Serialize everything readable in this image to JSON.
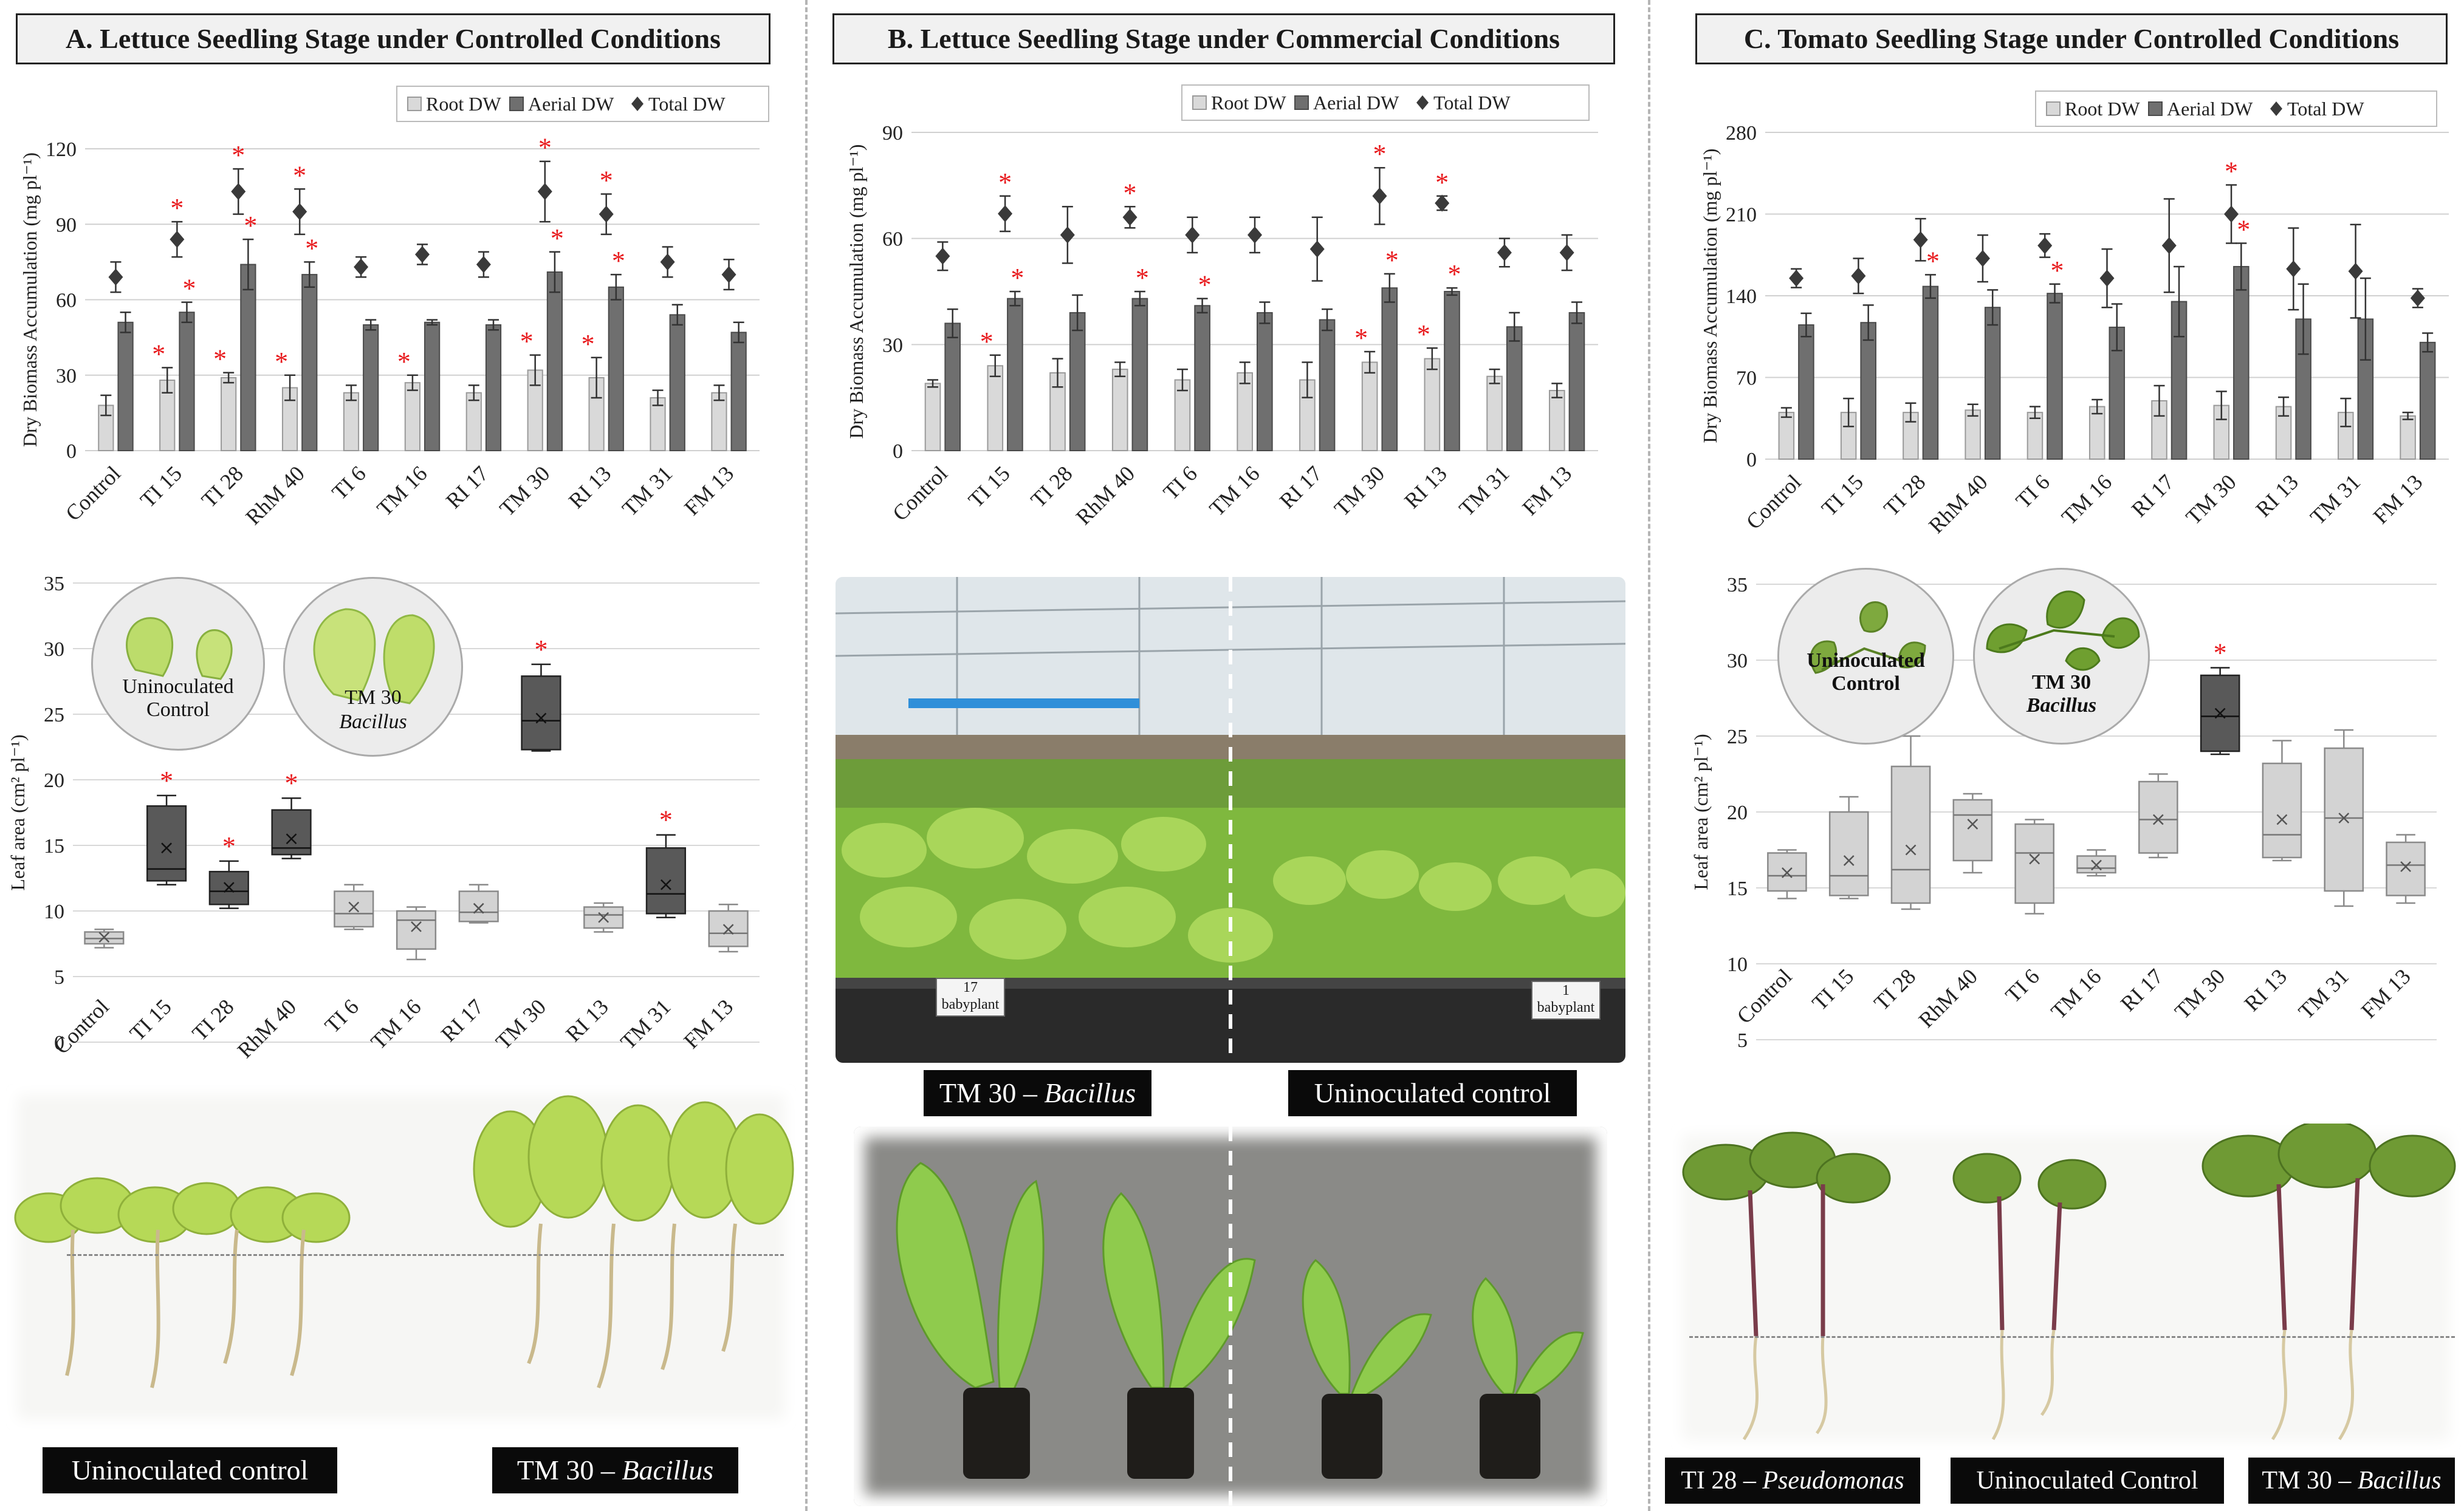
{
  "panels": {
    "A": {
      "title": "A. Lettuce Seedling Stage under Controlled Conditions"
    },
    "B": {
      "title": "B. Lettuce Seedling Stage under Commercial Conditions"
    },
    "C": {
      "title": "C. Tomato Seedling Stage under Controlled Conditions"
    }
  },
  "legend": {
    "root": "Root DW",
    "aerial": "Aerial DW",
    "total": "Total DW"
  },
  "colors": {
    "root": "#d9d9d9",
    "aerial": "#6f6f6f",
    "total": "#3a3a3a",
    "star": "#e8191c",
    "box_dark": "#595959",
    "box_light": "#d3d3d3"
  },
  "chart_data": [
    {
      "type": "bar",
      "panel": "A",
      "ylabel": "Dry Biomass Accumulation (mg pl⁻¹)",
      "ylim": [
        0,
        120
      ],
      "yticks": [
        0,
        30,
        60,
        90,
        120
      ],
      "categories": [
        "Control",
        "TI 15",
        "TI 28",
        "RhM 40",
        "TI 6",
        "TM 16",
        "RI 17",
        "TM 30",
        "RI 13",
        "TM 31",
        "FM 13"
      ],
      "series": [
        {
          "name": "Root DW",
          "values": [
            18,
            28,
            29,
            25,
            23,
            27,
            23,
            32,
            29,
            21,
            23
          ],
          "err": [
            4,
            5,
            2,
            5,
            3,
            3,
            3,
            6,
            8,
            3,
            3
          ],
          "sig": [
            false,
            true,
            true,
            true,
            false,
            true,
            false,
            true,
            true,
            false,
            false
          ]
        },
        {
          "name": "Aerial DW",
          "values": [
            51,
            55,
            74,
            70,
            50,
            51,
            50,
            71,
            65,
            54,
            47
          ],
          "err": [
            4,
            4,
            10,
            5,
            2,
            1,
            2,
            8,
            5,
            4,
            4
          ],
          "sig": [
            false,
            true,
            true,
            true,
            false,
            false,
            false,
            true,
            true,
            false,
            false
          ]
        },
        {
          "name": "Total DW",
          "values": [
            69,
            84,
            103,
            95,
            73,
            78,
            74,
            103,
            94,
            75,
            70
          ],
          "err": [
            6,
            7,
            9,
            9,
            4,
            4,
            5,
            12,
            8,
            6,
            6
          ],
          "sig": [
            false,
            true,
            true,
            true,
            false,
            false,
            false,
            true,
            true,
            false,
            false
          ]
        }
      ]
    },
    {
      "type": "bar",
      "panel": "B",
      "ylabel": "Dry Biomass Accumulation (mg pl⁻¹)",
      "ylim": [
        0,
        90
      ],
      "yticks": [
        0,
        30,
        60,
        90
      ],
      "categories": [
        "Control",
        "TI 15",
        "TI 28",
        "RhM 40",
        "TI 6",
        "TM 16",
        "RI 17",
        "TM 30",
        "RI 13",
        "TM 31",
        "FM 13"
      ],
      "series": [
        {
          "name": "Root DW",
          "values": [
            19,
            24,
            22,
            23,
            20,
            22,
            20,
            25,
            26,
            21,
            17
          ],
          "err": [
            1,
            3,
            4,
            2,
            3,
            3,
            5,
            3,
            3,
            2,
            2
          ],
          "sig": [
            false,
            true,
            false,
            false,
            false,
            false,
            false,
            true,
            true,
            false,
            false
          ]
        },
        {
          "name": "Aerial DW",
          "values": [
            36,
            43,
            39,
            43,
            41,
            39,
            37,
            46,
            45,
            35,
            39
          ],
          "err": [
            4,
            2,
            5,
            2,
            2,
            3,
            3,
            4,
            1,
            4,
            3
          ],
          "sig": [
            false,
            true,
            false,
            true,
            true,
            false,
            false,
            true,
            true,
            false,
            false
          ]
        },
        {
          "name": "Total DW",
          "values": [
            55,
            67,
            61,
            66,
            61,
            61,
            57,
            72,
            70,
            56,
            56
          ],
          "err": [
            4,
            5,
            8,
            3,
            5,
            5,
            9,
            8,
            2,
            4,
            5
          ],
          "sig": [
            false,
            true,
            false,
            true,
            false,
            false,
            false,
            true,
            true,
            false,
            false
          ]
        }
      ]
    },
    {
      "type": "bar",
      "panel": "C",
      "ylabel": "Dry Biomass Accumulation (mg pl⁻¹)",
      "ylim": [
        0,
        280
      ],
      "yticks": [
        0,
        70,
        140,
        210,
        280
      ],
      "categories": [
        "Control",
        "TI 15",
        "TI 28",
        "RhM 40",
        "TI 6",
        "TM 16",
        "RI 17",
        "TM 30",
        "RI 13",
        "TM 31",
        "FM 13"
      ],
      "series": [
        {
          "name": "Root DW",
          "values": [
            40,
            40,
            40,
            42,
            40,
            45,
            50,
            46,
            45,
            40,
            37
          ],
          "err": [
            4,
            12,
            8,
            5,
            5,
            6,
            13,
            12,
            8,
            12,
            3
          ],
          "sig": [
            false,
            false,
            false,
            false,
            false,
            false,
            false,
            false,
            false,
            false,
            false
          ]
        },
        {
          "name": "Aerial DW",
          "values": [
            115,
            117,
            148,
            130,
            142,
            113,
            135,
            165,
            120,
            120,
            100
          ],
          "err": [
            10,
            15,
            10,
            15,
            8,
            20,
            30,
            20,
            30,
            35,
            8
          ],
          "sig": [
            false,
            false,
            true,
            false,
            true,
            false,
            false,
            true,
            false,
            false,
            false
          ]
        },
        {
          "name": "Total DW",
          "values": [
            155,
            157,
            188,
            172,
            183,
            155,
            183,
            210,
            163,
            161,
            138
          ],
          "err": [
            8,
            15,
            18,
            20,
            10,
            25,
            40,
            25,
            35,
            40,
            8
          ],
          "sig": [
            false,
            false,
            false,
            false,
            false,
            false,
            false,
            true,
            false,
            false,
            false
          ]
        }
      ]
    },
    {
      "type": "box",
      "panel": "A",
      "ylabel": "Leaf area (cm² pl⁻¹)",
      "ylim": [
        0,
        35
      ],
      "yticks": [
        0,
        5,
        10,
        15,
        20,
        25,
        30,
        35
      ],
      "categories": [
        "Control",
        "TI 15",
        "TI 28",
        "RhM 40",
        "TI 6",
        "TM 16",
        "RI 17",
        "TM 30",
        "RI 13",
        "TM 31",
        "FM 13"
      ],
      "boxes": [
        {
          "min": 7.2,
          "q1": 7.5,
          "median": 7.9,
          "q3": 8.4,
          "max": 8.6,
          "mean": 8.0,
          "sig": false,
          "dark": false
        },
        {
          "min": 12,
          "q1": 12.3,
          "median": 13.2,
          "q3": 18,
          "max": 18.8,
          "mean": 14.8,
          "sig": true,
          "dark": true
        },
        {
          "min": 10.2,
          "q1": 10.5,
          "median": 11.5,
          "q3": 13,
          "max": 13.8,
          "mean": 11.8,
          "sig": true,
          "dark": true
        },
        {
          "min": 14,
          "q1": 14.3,
          "median": 14.8,
          "q3": 17.7,
          "max": 18.6,
          "mean": 15.5,
          "sig": true,
          "dark": true
        },
        {
          "min": 8.6,
          "q1": 8.8,
          "median": 9.8,
          "q3": 11.5,
          "max": 12,
          "mean": 10.3,
          "sig": false,
          "dark": false
        },
        {
          "min": 6.3,
          "q1": 7.1,
          "median": 9.3,
          "q3": 10,
          "max": 10.3,
          "mean": 8.8,
          "sig": false,
          "dark": false
        },
        {
          "min": 9.1,
          "q1": 9.2,
          "median": 9.9,
          "q3": 11.5,
          "max": 12,
          "mean": 10.2,
          "sig": false,
          "dark": false
        },
        {
          "min": 22.2,
          "q1": 22.3,
          "median": 24.5,
          "q3": 27.9,
          "max": 28.8,
          "mean": 24.7,
          "sig": true,
          "dark": true
        },
        {
          "min": 8.4,
          "q1": 8.7,
          "median": 9.7,
          "q3": 10.3,
          "max": 10.6,
          "mean": 9.5,
          "sig": false,
          "dark": false
        },
        {
          "min": 9.5,
          "q1": 9.8,
          "median": 11.3,
          "q3": 14.8,
          "max": 15.8,
          "mean": 12,
          "sig": true,
          "dark": true
        },
        {
          "min": 6.9,
          "q1": 7.3,
          "median": 8.3,
          "q3": 10,
          "max": 10.5,
          "mean": 8.6,
          "sig": false,
          "dark": false
        }
      ],
      "badges": {
        "control": "Uninoculated Control",
        "treated": "TM 30",
        "treated_genus": "Bacillus"
      }
    },
    {
      "type": "box",
      "panel": "C",
      "ylabel": "Leaf area (cm² pl⁻¹)",
      "ylim": [
        5,
        35
      ],
      "yticks": [
        5,
        10,
        15,
        20,
        25,
        30,
        35
      ],
      "categories": [
        "Control",
        "TI 15",
        "TI 28",
        "RhM 40",
        "TI 6",
        "TM 16",
        "RI 17",
        "TM 30",
        "RI 13",
        "TM 31",
        "FM 13"
      ],
      "boxes": [
        {
          "min": 14.3,
          "q1": 14.8,
          "median": 15.8,
          "q3": 17.3,
          "max": 17.5,
          "mean": 16,
          "sig": false,
          "dark": false
        },
        {
          "min": 14.3,
          "q1": 14.5,
          "median": 15.8,
          "q3": 20,
          "max": 21,
          "mean": 16.8,
          "sig": false,
          "dark": false
        },
        {
          "min": 13.6,
          "q1": 14,
          "median": 16.2,
          "q3": 23,
          "max": 25,
          "mean": 17.5,
          "sig": false,
          "dark": false
        },
        {
          "min": 16,
          "q1": 16.8,
          "median": 19.8,
          "q3": 20.8,
          "max": 21.2,
          "mean": 19.2,
          "sig": false,
          "dark": false
        },
        {
          "min": 13.3,
          "q1": 14,
          "median": 17.3,
          "q3": 19.2,
          "max": 19.5,
          "mean": 16.9,
          "sig": false,
          "dark": false
        },
        {
          "min": 15.8,
          "q1": 16,
          "median": 16.3,
          "q3": 17.1,
          "max": 17.5,
          "mean": 16.5,
          "sig": false,
          "dark": false
        },
        {
          "min": 17,
          "q1": 17.3,
          "median": 19.5,
          "q3": 22,
          "max": 22.5,
          "mean": 19.5,
          "sig": false,
          "dark": false
        },
        {
          "min": 23.8,
          "q1": 24,
          "median": 26.3,
          "q3": 29,
          "max": 29.5,
          "mean": 26.5,
          "sig": true,
          "dark": true
        },
        {
          "min": 16.8,
          "q1": 17,
          "median": 18.5,
          "q3": 23.2,
          "max": 24.7,
          "mean": 19.5,
          "sig": false,
          "dark": false
        },
        {
          "min": 13.8,
          "q1": 14.8,
          "median": 19.6,
          "q3": 24.2,
          "max": 25.4,
          "mean": 19.6,
          "sig": false,
          "dark": false
        },
        {
          "min": 14,
          "q1": 14.5,
          "median": 16.5,
          "q3": 18,
          "max": 18.5,
          "mean": 16.4,
          "sig": false,
          "dark": false
        }
      ],
      "badges": {
        "control": "Uninoculated Control",
        "treated": "TM 30",
        "treated_genus": "Bacillus"
      }
    }
  ],
  "captions": {
    "a_control": "Uninoculated control",
    "a_treated": "TM 30 – ",
    "a_treated_genus": "Bacillus",
    "b_treated": "TM 30 – ",
    "b_treated_genus": "Bacillus",
    "b_control": "Uninoculated control",
    "c_ti28": "TI 28 – ",
    "c_ti28_genus": "Pseudomonas",
    "c_control": "Uninoculated Control",
    "c_treated": "TM 30 – ",
    "c_treated_genus": "Bacillus"
  },
  "tray_labels": {
    "left_number": "17",
    "left_text": "babyplant",
    "right_number": "1",
    "right_text": "babyplant"
  },
  "photos": {
    "a_seedlings": "lettuce-seedlings-photo",
    "b_greenhouse": "greenhouse-tray-photo",
    "b_seedlings": "lettuce-plugs-photo",
    "c_seedlings": "tomato-seedlings-photo"
  }
}
